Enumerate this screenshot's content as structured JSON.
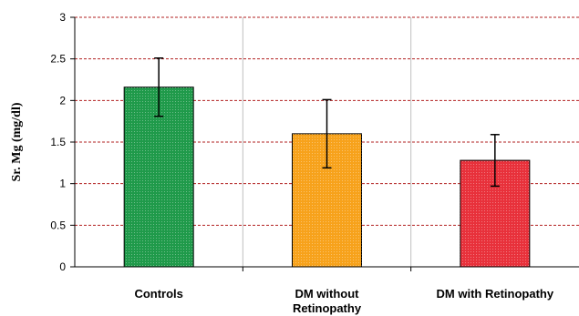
{
  "chart_data": {
    "type": "bar",
    "ylabel": "Sr. Mg (mg/dl)",
    "xlabel": "",
    "ylim": [
      0,
      3
    ],
    "yticks": [
      "0",
      "0.5",
      "1",
      "1.5",
      "2",
      "2.5",
      "3"
    ],
    "grid": true,
    "categories": [
      [
        "Controls"
      ],
      [
        "DM without",
        "Retinopathy"
      ],
      [
        "DM with Retinopathy"
      ]
    ],
    "values": [
      2.16,
      1.6,
      1.28
    ],
    "error": [
      0.35,
      0.41,
      0.31
    ],
    "colors": [
      "#1f9a4a",
      "#f7a21b",
      "#e8313b"
    ]
  }
}
